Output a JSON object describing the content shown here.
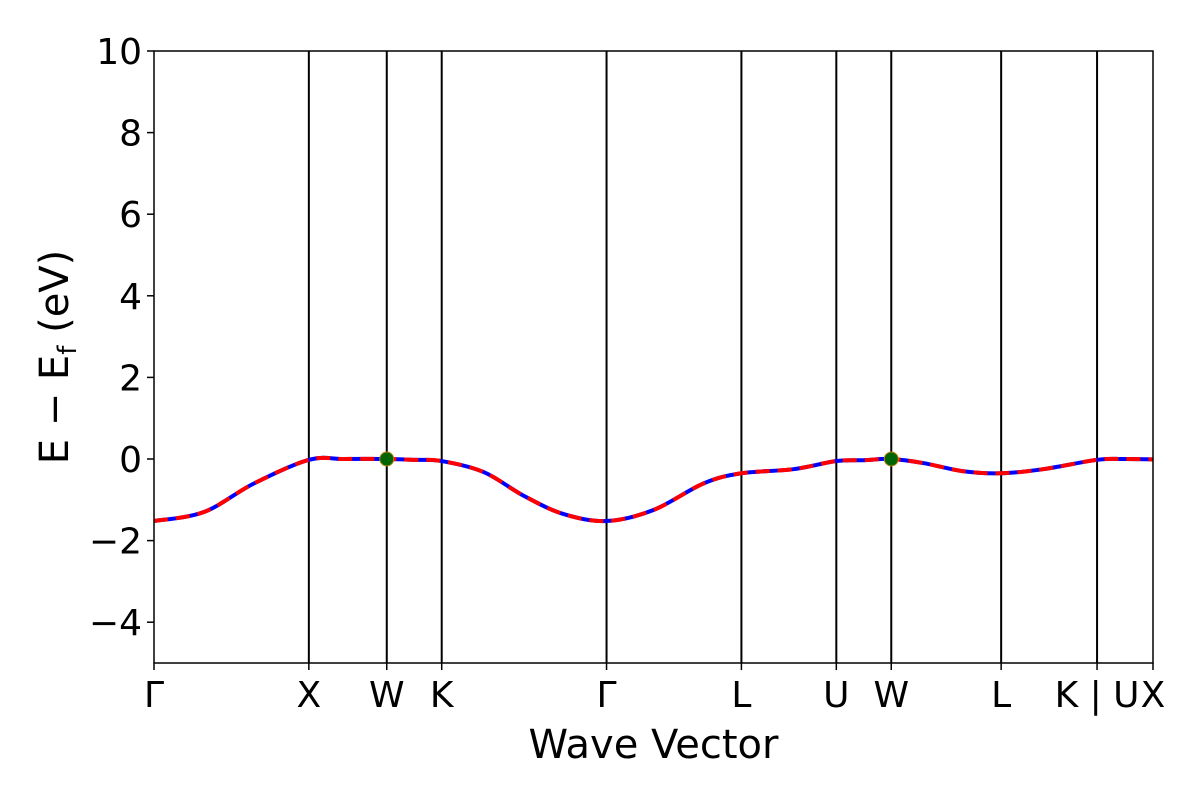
{
  "chart_data": {
    "type": "line",
    "xlabel": "Wave Vector",
    "ylabel": "E − E",
    "ylabel_sub": "f",
    "ylabel_suffix": " (eV)",
    "ylim": [
      -5,
      10
    ],
    "xlim": [
      0,
      1
    ],
    "yticks": [
      -4,
      -2,
      0,
      2,
      4,
      6,
      8,
      10
    ],
    "ytick_labels": [
      "−4",
      "−2",
      "0",
      "2",
      "4",
      "6",
      "8",
      "10"
    ],
    "kpoints": [
      {
        "label": "Γ",
        "x": 0.0
      },
      {
        "label": "X",
        "x": 0.155
      },
      {
        "label": "W",
        "x": 0.233
      },
      {
        "label": "K",
        "x": 0.288
      },
      {
        "label": "Γ",
        "x": 0.453
      },
      {
        "label": "L",
        "x": 0.588
      },
      {
        "label": "U",
        "x": 0.683
      },
      {
        "label": "W",
        "x": 0.738
      },
      {
        "label": "L",
        "x": 0.848
      },
      {
        "label": "K | U",
        "x": 0.944
      },
      {
        "label": "X",
        "x": 1.0
      }
    ],
    "series": [
      {
        "color": "#0000ff",
        "dashed": false,
        "x": [
          0.0,
          0.05,
          0.1,
          0.155,
          0.19,
          0.233,
          0.26,
          0.288,
          0.33,
          0.37,
          0.41,
          0.453,
          0.5,
          0.55,
          0.588,
          0.64,
          0.683,
          0.71,
          0.738,
          0.77,
          0.81,
          0.848,
          0.89,
          0.944,
          0.97,
          1.0
        ],
        "y": [
          -1.52,
          -1.3,
          -0.6,
          -0.02,
          0.0,
          0.0,
          -0.02,
          -0.05,
          -0.32,
          -0.9,
          -1.35,
          -1.52,
          -1.25,
          -0.6,
          -0.35,
          -0.25,
          -0.05,
          -0.03,
          0.0,
          -0.1,
          -0.3,
          -0.35,
          -0.25,
          -0.02,
          0.0,
          -0.01
        ]
      },
      {
        "color": "#ff0000",
        "dashed": true,
        "x": [
          0.0,
          0.05,
          0.1,
          0.155,
          0.19,
          0.233,
          0.26,
          0.288,
          0.33,
          0.37,
          0.41,
          0.453,
          0.5,
          0.55,
          0.588,
          0.64,
          0.683,
          0.71,
          0.738,
          0.77,
          0.81,
          0.848,
          0.89,
          0.944,
          0.97,
          1.0
        ],
        "y": [
          -1.52,
          -1.3,
          -0.6,
          -0.02,
          0.0,
          0.0,
          -0.02,
          -0.05,
          -0.32,
          -0.9,
          -1.35,
          -1.52,
          -1.25,
          -0.6,
          -0.35,
          -0.25,
          -0.05,
          -0.03,
          0.0,
          -0.1,
          -0.3,
          -0.35,
          -0.25,
          -0.02,
          0.0,
          -0.01
        ]
      }
    ],
    "markers": [
      {
        "x": 0.233,
        "y": 0.0,
        "color": "#006400"
      },
      {
        "x": 0.738,
        "y": 0.0,
        "color": "#006400"
      }
    ],
    "grid": false,
    "legend": "none"
  }
}
